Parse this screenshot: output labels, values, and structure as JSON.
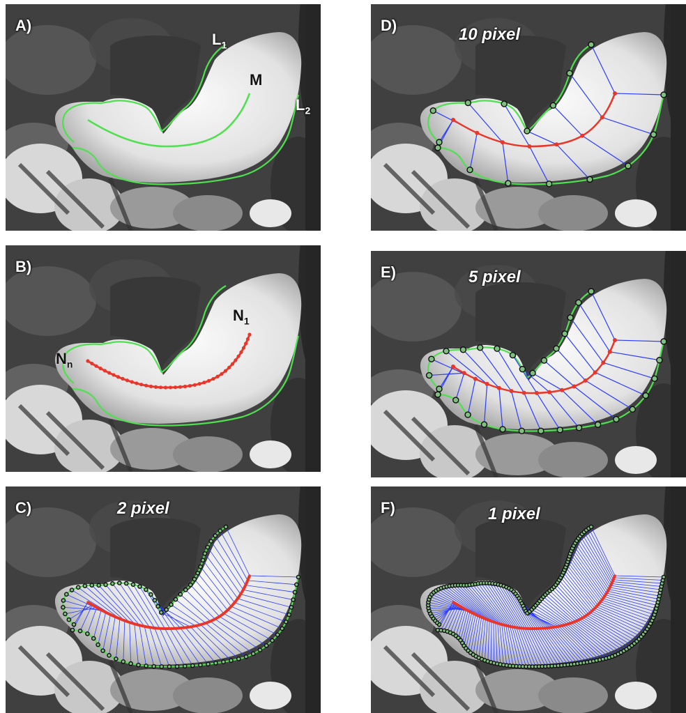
{
  "panels": {
    "a": {
      "label": "A)",
      "marks": {
        "l1": "L",
        "l1_sub": "1",
        "m": "M",
        "l2": "L",
        "l2_sub": "2"
      }
    },
    "b": {
      "label": "B)",
      "marks": {
        "n1": "N",
        "n1_sub": "1",
        "nn": "N",
        "nn_sub": "n"
      }
    },
    "c": {
      "label": "C)",
      "title": "2 pixel"
    },
    "d": {
      "label": "D)",
      "title": "10 pixel"
    },
    "e": {
      "label": "E)",
      "title": "5 pixel"
    },
    "f": {
      "label": "F)",
      "title": "1 pixel"
    }
  },
  "colors": {
    "boundary": "#4ee04e",
    "midline": "#e8362a",
    "normals": "#2a3cff",
    "nodes": "#0d0d0d"
  }
}
